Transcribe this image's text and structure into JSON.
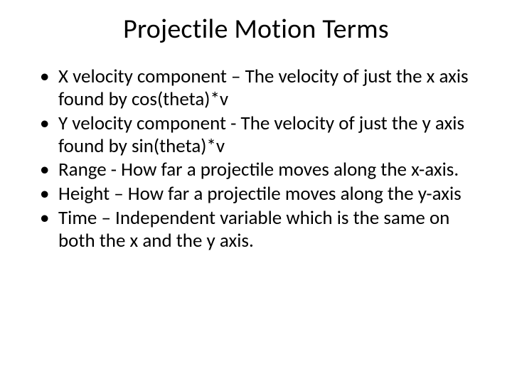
{
  "slide": {
    "title": "Projectile Motion Terms",
    "bullets": [
      "X velocity component – The velocity of just the x axis found by cos(theta)*v",
      "Y velocity component - The velocity of just the y axis found by sin(theta)*v",
      "Range -  How far a projectile moves along the x-axis.",
      "Height – How far a projectile moves along the y-axis",
      "Time – Independent variable which is the same on both the x and the y axis."
    ]
  },
  "colors": {
    "background": "#ffffff",
    "text": "#000000"
  },
  "typography": {
    "title_fontsize": 38,
    "body_fontsize": 27,
    "font_family": "Calibri"
  }
}
